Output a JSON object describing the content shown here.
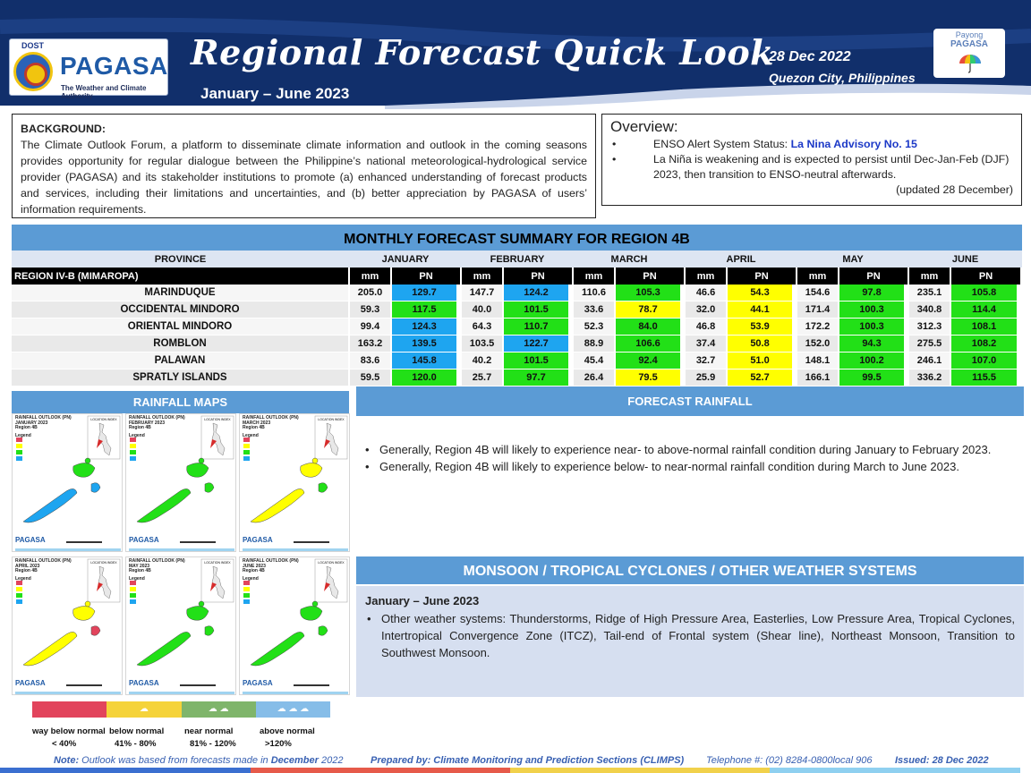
{
  "header": {
    "logo": {
      "agency": "DOST",
      "name": "PAGASA",
      "tagline": "The Weather and Climate Authority"
    },
    "title": "Regional Forecast Quick Look",
    "period": "January – June 2023",
    "date": "28 Dec 2022",
    "location": "Quezon City, Philippines",
    "payong": {
      "line1": "Payong",
      "line2": "PAGASA"
    }
  },
  "background": {
    "label": "BACKGROUND",
    "text": "The Climate Outlook Forum, a platform to disseminate climate information and outlook in the coming seasons provides opportunity for regular dialogue between the Philippine’s national meteorological-hydrological service provider (PAGASA) and its stakeholder institutions to promote (a) enhanced understanding of forecast products and services, including their limitations and uncertainties, and (b) better appreciation by PAGASA of users’ information requirements."
  },
  "overview": {
    "title": "Overview:",
    "enso_prefix": "ENSO Alert System Status: ",
    "enso_status": "La Nina Advisory No. 15",
    "note": "La Niña is weakening and is expected to persist until Dec-Jan-Feb (DJF) 2023,  then transition to ENSO-neutral afterwards.",
    "updated": "(updated 28 December)"
  },
  "forecast_table": {
    "title": "MONTHLY FORECAST SUMMARY FOR REGION 4B",
    "province_header": "PROVINCE",
    "region": "REGION IV-B  (MIMAROPA)",
    "months": [
      "JANUARY",
      "FEBRUARY",
      "MARCH",
      "APRIL",
      "MAY",
      "JUNE"
    ],
    "sub_headers": [
      "mm",
      "PN"
    ],
    "rows": [
      {
        "province": "MARINDUQUE",
        "values": [
          [
            "205.0",
            "129.7"
          ],
          [
            "147.7",
            "124.2"
          ],
          [
            "110.6",
            "105.3"
          ],
          [
            "46.6",
            "54.3"
          ],
          [
            "154.6",
            "97.8"
          ],
          [
            "235.1",
            "105.8"
          ]
        ]
      },
      {
        "province": "OCCIDENTAL MINDORO",
        "values": [
          [
            "59.3",
            "117.5"
          ],
          [
            "40.0",
            "101.5"
          ],
          [
            "33.6",
            "78.7"
          ],
          [
            "32.0",
            "44.1"
          ],
          [
            "171.4",
            "100.3"
          ],
          [
            "340.8",
            "114.4"
          ]
        ]
      },
      {
        "province": "ORIENTAL MINDORO",
        "values": [
          [
            "99.4",
            "124.3"
          ],
          [
            "64.3",
            "110.7"
          ],
          [
            "52.3",
            "84.0"
          ],
          [
            "46.8",
            "53.9"
          ],
          [
            "172.2",
            "100.3"
          ],
          [
            "312.3",
            "108.1"
          ]
        ]
      },
      {
        "province": "ROMBLON",
        "values": [
          [
            "163.2",
            "139.5"
          ],
          [
            "103.5",
            "122.7"
          ],
          [
            "88.9",
            "106.6"
          ],
          [
            "37.4",
            "50.8"
          ],
          [
            "152.0",
            "94.3"
          ],
          [
            "275.5",
            "108.2"
          ]
        ]
      },
      {
        "province": "PALAWAN",
        "values": [
          [
            "83.6",
            "145.8"
          ],
          [
            "40.2",
            "101.5"
          ],
          [
            "45.4",
            "92.4"
          ],
          [
            "32.7",
            "51.0"
          ],
          [
            "148.1",
            "100.2"
          ],
          [
            "246.1",
            "107.0"
          ]
        ]
      },
      {
        "province": "SPRATLY ISLANDS",
        "values": [
          [
            "59.5",
            "120.0"
          ],
          [
            "25.7",
            "97.7"
          ],
          [
            "26.4",
            "79.5"
          ],
          [
            "25.9",
            "52.7"
          ],
          [
            "166.1",
            "99.5"
          ],
          [
            "336.2",
            "115.5"
          ]
        ]
      }
    ]
  },
  "category_colors": {
    "way_below_normal": "#e2445c",
    "below_normal": "#ffff00",
    "near_normal": "#22e017",
    "above_normal": "#1ea5f0"
  },
  "rainfall_maps": {
    "title": "RAINFALL MAPS",
    "maps": [
      {
        "title": "RAINFALL OUTLOOK (PN)",
        "month": "JANUARY 2023",
        "region": "Region 4B",
        "legend_label": "Legend",
        "inset_label": "LOCATION INDEX",
        "logo": "PAGASA"
      },
      {
        "title": "RAINFALL OUTLOOK (PN)",
        "month": "FEBRUARY 2023",
        "region": "Region 4B",
        "legend_label": "Legend",
        "inset_label": "LOCATION INDEX",
        "logo": "PAGASA"
      },
      {
        "title": "RAINFALL OUTLOOK (PN)",
        "month": "MARCH 2023",
        "region": "Region 4B",
        "legend_label": "Legend",
        "inset_label": "LOCATION INDEX",
        "logo": "PAGASA"
      },
      {
        "title": "RAINFALL OUTLOOK (PN)",
        "month": "APRIL 2023",
        "region": "Region 4B",
        "legend_label": "Legend",
        "inset_label": "LOCATION INDEX",
        "logo": "PAGASA"
      },
      {
        "title": "RAINFALL OUTLOOK (PN)",
        "month": "MAY 2023",
        "region": "Region 4B",
        "legend_label": "Legend",
        "inset_label": "LOCATION INDEX",
        "logo": "PAGASA"
      },
      {
        "title": "RAINFALL OUTLOOK (PN)",
        "month": "JUNE 2023",
        "region": "Region 4B",
        "legend_label": "Legend",
        "inset_label": "LOCATION INDEX",
        "logo": "PAGASA"
      }
    ],
    "legend": [
      {
        "label": "way below normal",
        "range": "< 40%",
        "color": "#e2445c"
      },
      {
        "label": "below normal",
        "range": "41% -  80%",
        "color": "#f5d33a"
      },
      {
        "label": "near normal",
        "range": "81% - 120%",
        "color": "#7fb56b"
      },
      {
        "label": "above normal",
        "range": ">120%",
        "color": "#86bde8"
      }
    ]
  },
  "forecast_rainfall": {
    "title": "FORECAST RAINFALL",
    "bullets": [
      "Generally, Region 4B will likely to experience near- to above-normal rainfall condition during January to February 2023.",
      "Generally, Region 4B will likely to experience below- to near-normal rainfall condition during March to June 2023."
    ]
  },
  "weather_systems": {
    "title": "MONSOON / TROPICAL CYCLONES / OTHER WEATHER SYSTEMS",
    "period": "January – June 2023",
    "bullet": "Other weather systems: Thunderstorms,  Ridge of High Pressure Area,  Easterlies, Low Pressure Area, Tropical Cyclones, Intertropical Convergence Zone (ITCZ), Tail-end of Frontal system (Shear line), Northeast Monsoon, Transition to Southwest Monsoon."
  },
  "footer": {
    "note_label": "Note:",
    "note_text": " Outlook was based from forecasts made in ",
    "note_bold": "December",
    "note_year": " 2022",
    "prepared": "Prepared by: Climate Monitoring and Prediction Sections (CLIMPS)",
    "telephone": "Telephone #: (02) 8284-0800local 906",
    "issued": "Issued: 28 Dec 2022"
  }
}
